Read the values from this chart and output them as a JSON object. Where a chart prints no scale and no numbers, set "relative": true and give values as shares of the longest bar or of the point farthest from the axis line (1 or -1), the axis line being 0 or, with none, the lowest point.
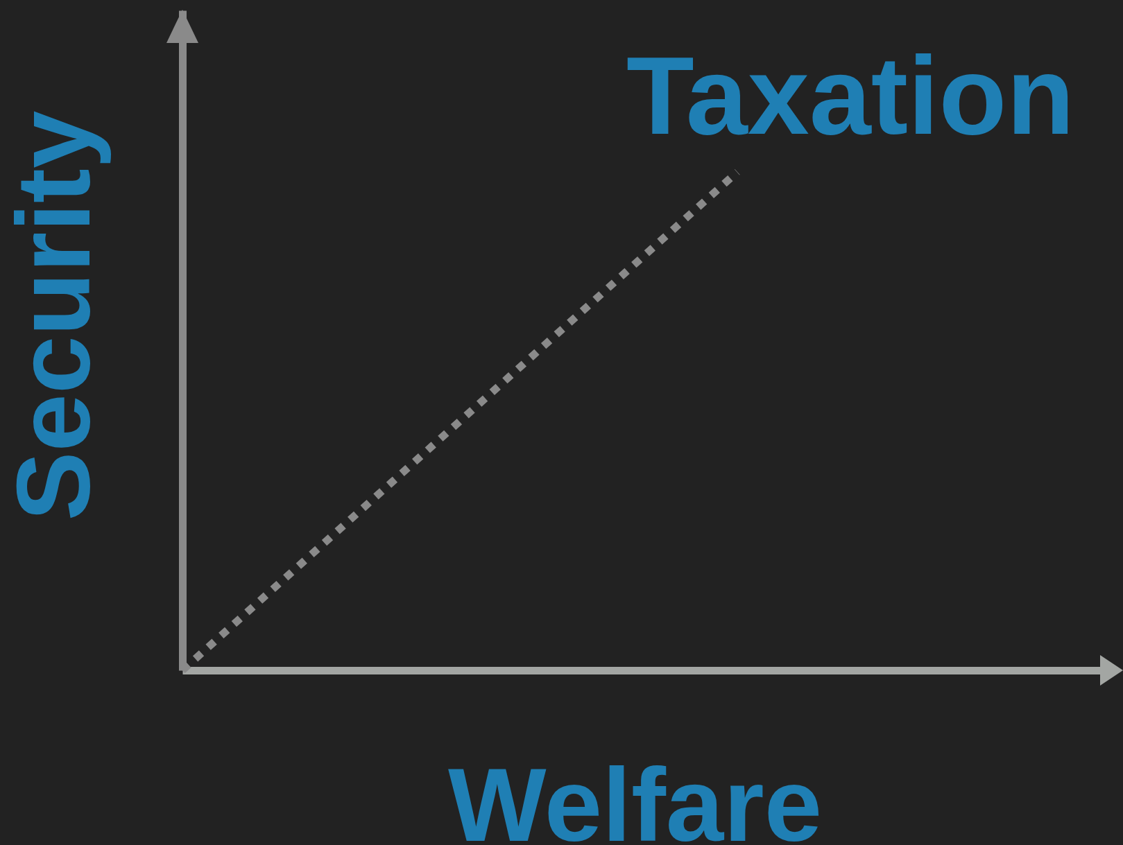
{
  "chart_data": {
    "type": "line",
    "relative": true,
    "categories": [
      null,
      null
    ],
    "series": [
      {
        "color": "#8a8a8a",
        "values": [
          0,
          1
        ]
      }
    ],
    "xlabel": "Welfare",
    "ylabel": "Security",
    "annotations": [
      "Taxation"
    ],
    "line_style": "dotted",
    "marker": "none",
    "grid": false,
    "tick_labels": false
  }
}
